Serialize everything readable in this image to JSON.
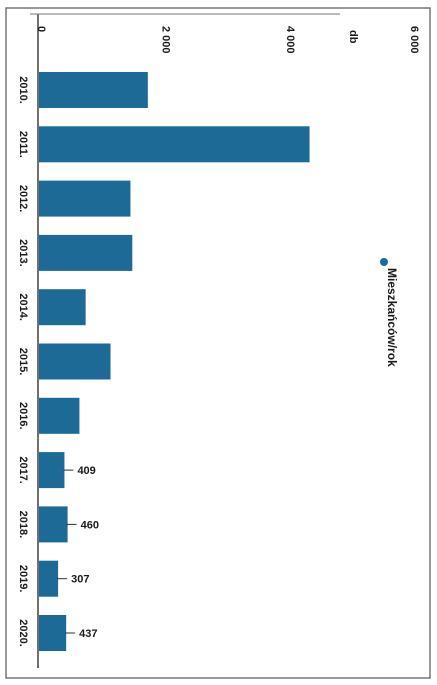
{
  "chart_data": {
    "type": "bar",
    "orientation": "horizontal",
    "categories": [
      "2010.",
      "2011.",
      "2012.",
      "2013.",
      "2014.",
      "2015.",
      "2016.",
      "2017.",
      "2018.",
      "2019.",
      "2020."
    ],
    "series": [
      {
        "name": "Mieszkańców/rok",
        "values": [
          1750,
          4350,
          1470,
          1500,
          750,
          1150,
          650,
          409,
          460,
          307,
          437
        ],
        "value_labels": [
          "",
          "",
          "",
          "",
          "",
          "",
          "",
          "409",
          "460",
          "307",
          "437"
        ]
      }
    ],
    "axis_tick_labels": [
      "0",
      "2 000",
      "4 000",
      "6 000"
    ],
    "axis_tick_values": [
      0,
      2000,
      4000,
      6000
    ],
    "axis_extra_label": "db",
    "xlim": [
      0,
      6000
    ],
    "grid": false,
    "legend_position": "right",
    "bar_color": "#1d6a96"
  }
}
